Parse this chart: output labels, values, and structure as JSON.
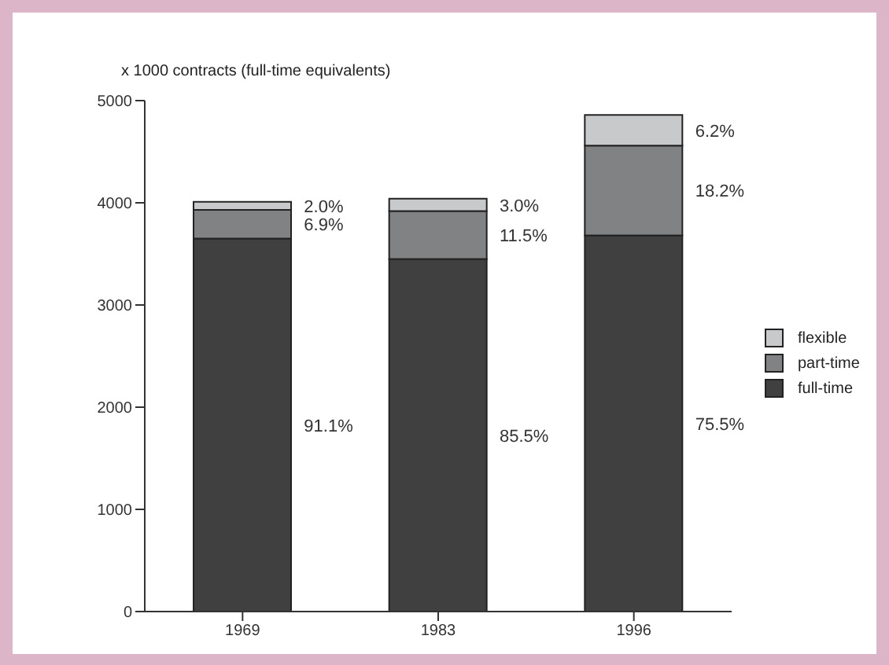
{
  "chart_data": {
    "type": "bar",
    "stacked": true,
    "ylabel": "x 1000 contracts (full-time equivalents)",
    "categories": [
      "1969",
      "1983",
      "1996"
    ],
    "series": [
      {
        "name": "full-time",
        "color": "#404040",
        "values": [
          3650,
          3450,
          3680
        ]
      },
      {
        "name": "part-time",
        "color": "#808284",
        "values": [
          280,
          470,
          880
        ]
      },
      {
        "name": "flexible",
        "color": "#c8c9cb",
        "values": [
          80,
          120,
          300
        ]
      }
    ],
    "annotations": [
      "91.1%",
      "6.9%",
      "2.0%",
      "85.5%",
      "11.5%",
      "3.0%",
      "75.5%",
      "18.2%",
      "6.2%"
    ],
    "ylim": [
      0,
      5000
    ],
    "yticks": [
      0,
      1000,
      2000,
      3000,
      4000,
      5000
    ],
    "legend": "right"
  }
}
